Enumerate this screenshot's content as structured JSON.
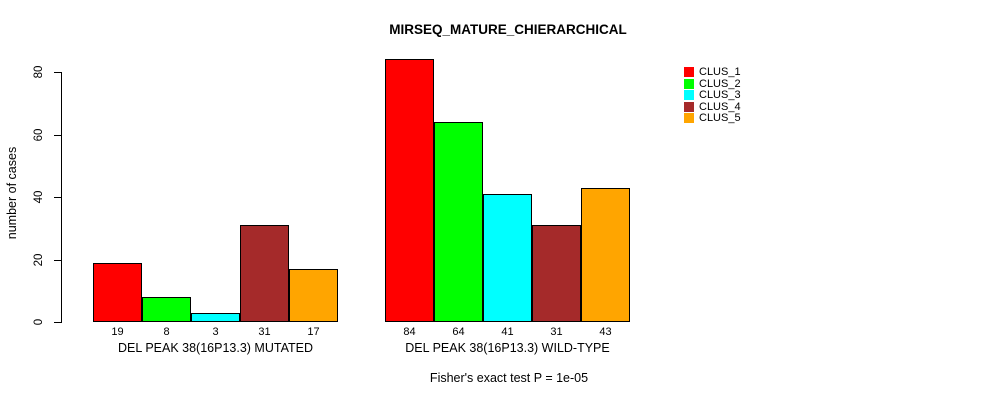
{
  "chart_data": {
    "type": "bar",
    "title": "MIRSEQ_MATURE_CHIERARCHICAL",
    "xlabel": "",
    "ylabel": "number of cases",
    "ylim": [
      0,
      84
    ],
    "yticks": [
      0,
      20,
      40,
      60,
      80
    ],
    "grid": false,
    "legend_position": "right",
    "bar_labels": true,
    "categories": [
      "DEL PEAK 38(16P13.3) MUTATED",
      "DEL PEAK 38(16P13.3) WILD-TYPE"
    ],
    "series": [
      {
        "name": "CLUS_1",
        "color": "#FF0000",
        "values": [
          19,
          84
        ]
      },
      {
        "name": "CLUS_2",
        "color": "#00FF00",
        "values": [
          8,
          64
        ]
      },
      {
        "name": "CLUS_3",
        "color": "#00FFFF",
        "values": [
          3,
          41
        ]
      },
      {
        "name": "CLUS_4",
        "color": "#A52A2A",
        "values": [
          31,
          31
        ]
      },
      {
        "name": "CLUS_5",
        "color": "#FFA500",
        "values": [
          17,
          43
        ]
      }
    ],
    "annotation": "Fisher's exact test P = 1e-05"
  }
}
